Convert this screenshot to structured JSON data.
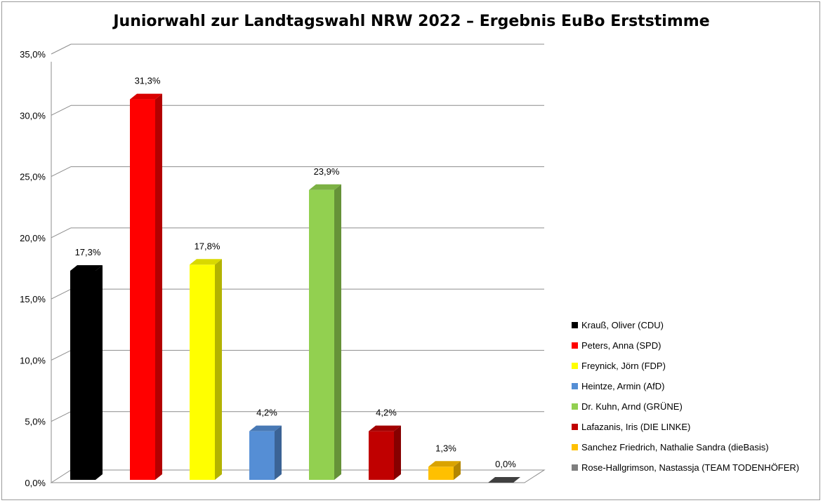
{
  "chart_data": {
    "type": "bar",
    "title": "Juniorwahl zur Landtagswahl NRW 2022 – Ergebnis EuBo Erststimme",
    "xlabel": "",
    "ylabel": "",
    "ylim": [
      0,
      35
    ],
    "y_ticks": [
      "0,0%",
      "5,0%",
      "10,0%",
      "15,0%",
      "20,0%",
      "25,0%",
      "30,0%",
      "35,0%"
    ],
    "grid": true,
    "legend_position": "right",
    "categories": [
      "Krauß, Oliver (CDU)",
      "Peters, Anna (SPD)",
      "Freynick, Jörn (FDP)",
      "Heintze, Armin (AfD)",
      "Dr. Kuhn, Arnd (GRÜNE)",
      "Lafazanis, Iris (DIE LINKE)",
      "Sanchez Friedrich, Nathalie Sandra (dieBasis)",
      "Rose-Hallgrimson, Nastassja (TEAM TODENHÖFER)"
    ],
    "values": [
      17.3,
      31.3,
      17.8,
      4.2,
      23.9,
      4.2,
      1.3,
      0.0
    ],
    "data_labels": [
      "17,3%",
      "31,3%",
      "17,8%",
      "4,2%",
      "23,9%",
      "4,2%",
      "1,3%",
      "0,0%"
    ],
    "colors": [
      "#000000",
      "#ff0000",
      "#ffff00",
      "#558ed5",
      "#92d050",
      "#c00000",
      "#ffc000",
      "#7f7f7f"
    ]
  }
}
